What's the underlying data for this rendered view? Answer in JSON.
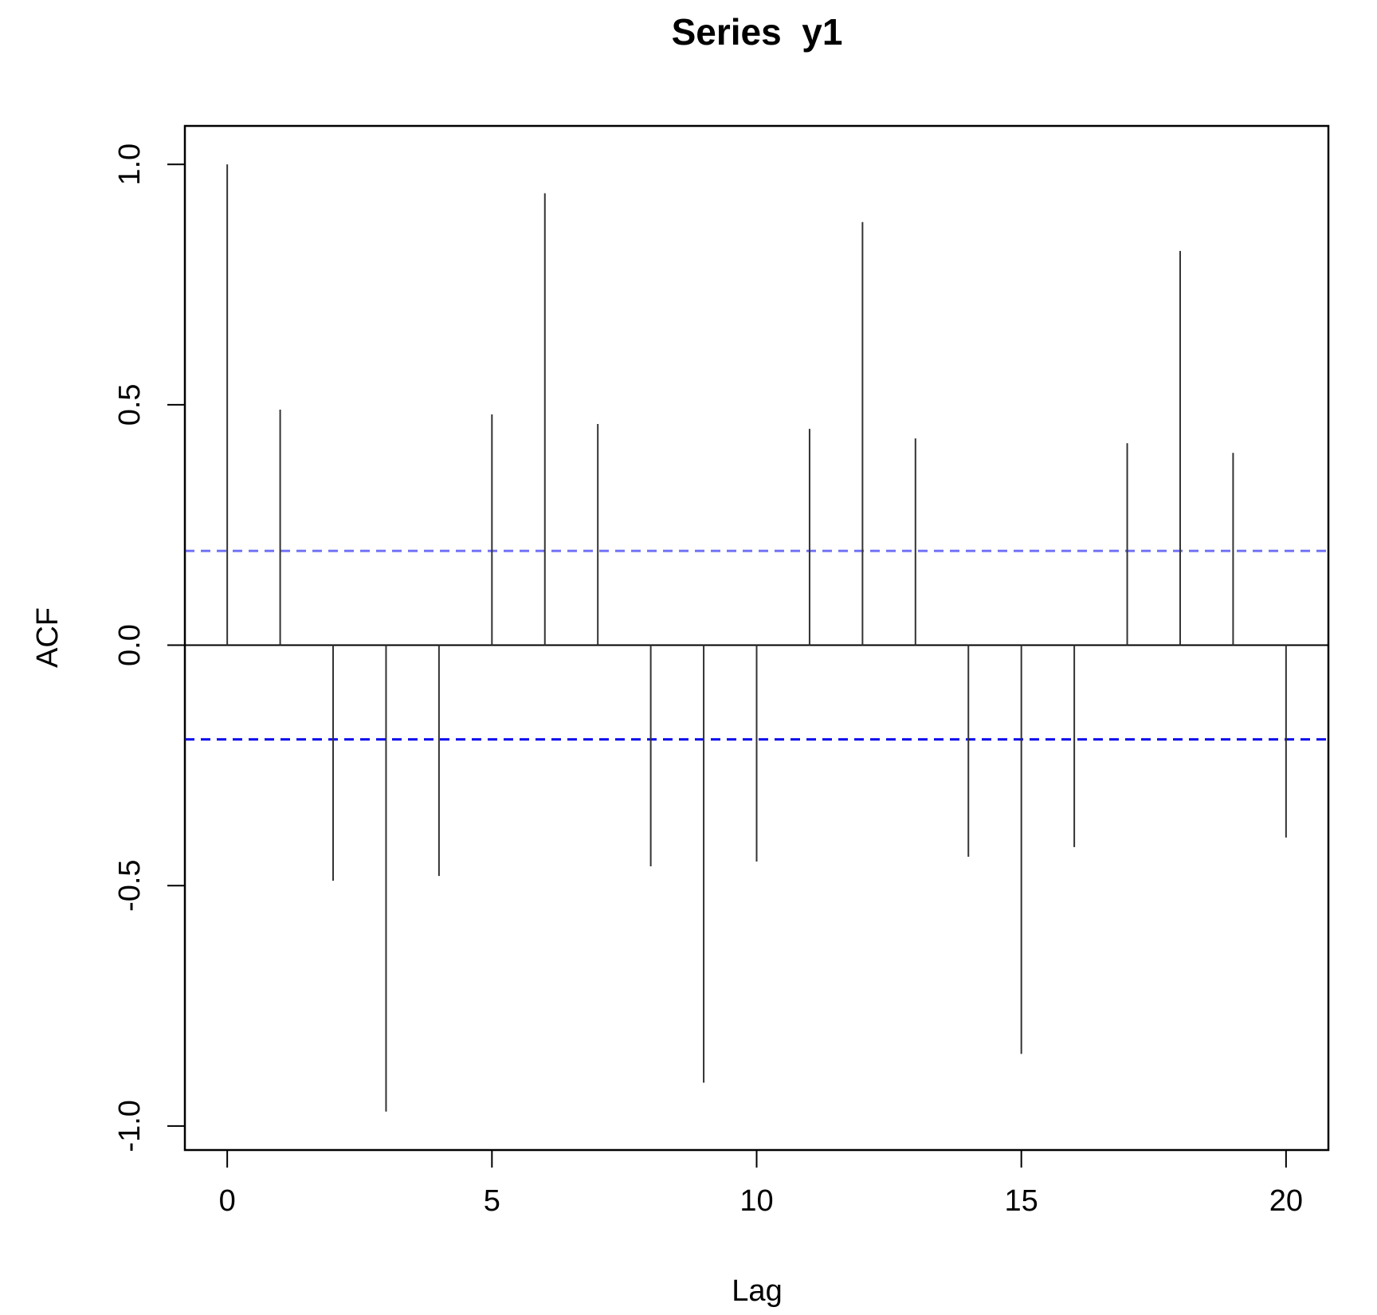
{
  "chart_data": {
    "type": "bar",
    "title": "Series  y1",
    "xlabel": "Lag",
    "ylabel": "ACF",
    "x": [
      0,
      1,
      2,
      3,
      4,
      5,
      6,
      7,
      8,
      9,
      10,
      11,
      12,
      13,
      14,
      15,
      16,
      17,
      18,
      19,
      20
    ],
    "values": [
      1.0,
      0.49,
      -0.49,
      -0.97,
      -0.48,
      0.48,
      0.94,
      0.46,
      -0.46,
      -0.91,
      -0.45,
      0.45,
      0.88,
      0.43,
      -0.44,
      -0.85,
      -0.42,
      0.42,
      0.82,
      0.4,
      -0.4
    ],
    "xlim": [
      -0.8,
      20.8
    ],
    "ylim": [
      -1.05,
      1.08
    ],
    "xticks": [
      0,
      5,
      10,
      15,
      20
    ],
    "xtick_labels": [
      "0",
      "5",
      "10",
      "15",
      "20"
    ],
    "yticks": [
      -1.0,
      -0.5,
      0.0,
      0.5,
      1.0
    ],
    "ytick_labels": [
      "-1.0",
      "-0.5",
      "0.0",
      "0.5",
      "1.0"
    ],
    "confidence_bounds": [
      0.196,
      -0.196
    ],
    "zero_line": true,
    "grid": false,
    "colors": {
      "bars": "#333333",
      "bounds": "#0000ee",
      "frame": "#000000"
    }
  }
}
